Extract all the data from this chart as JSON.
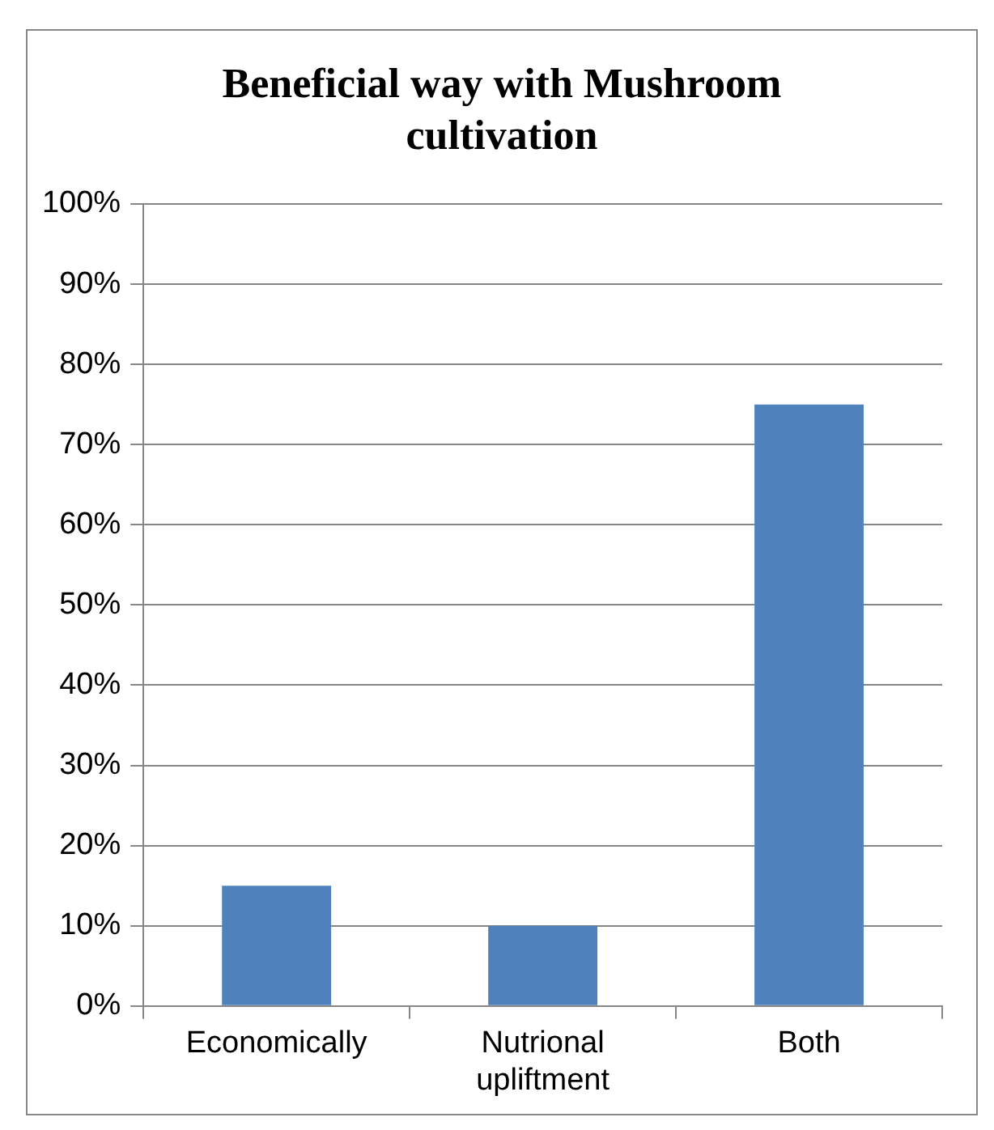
{
  "chart_data": {
    "type": "bar",
    "title": "Beneficial way with Mushroom cultivation",
    "categories": [
      "Economically",
      "Nutrional upliftment",
      "Both"
    ],
    "values": [
      15,
      10,
      75
    ],
    "color": "#4f81bd",
    "ylim": [
      0,
      100
    ],
    "yticks": [
      {
        "value": 0,
        "label": "0%"
      },
      {
        "value": 10,
        "label": "10%"
      },
      {
        "value": 20,
        "label": "20%"
      },
      {
        "value": 30,
        "label": "30%"
      },
      {
        "value": 40,
        "label": "40%"
      },
      {
        "value": 50,
        "label": "50%"
      },
      {
        "value": 60,
        "label": "60%"
      },
      {
        "value": 70,
        "label": "70%"
      },
      {
        "value": 80,
        "label": "80%"
      },
      {
        "value": 90,
        "label": "90%"
      },
      {
        "value": 100,
        "label": "100%"
      }
    ],
    "grid": "y",
    "legend": false
  }
}
